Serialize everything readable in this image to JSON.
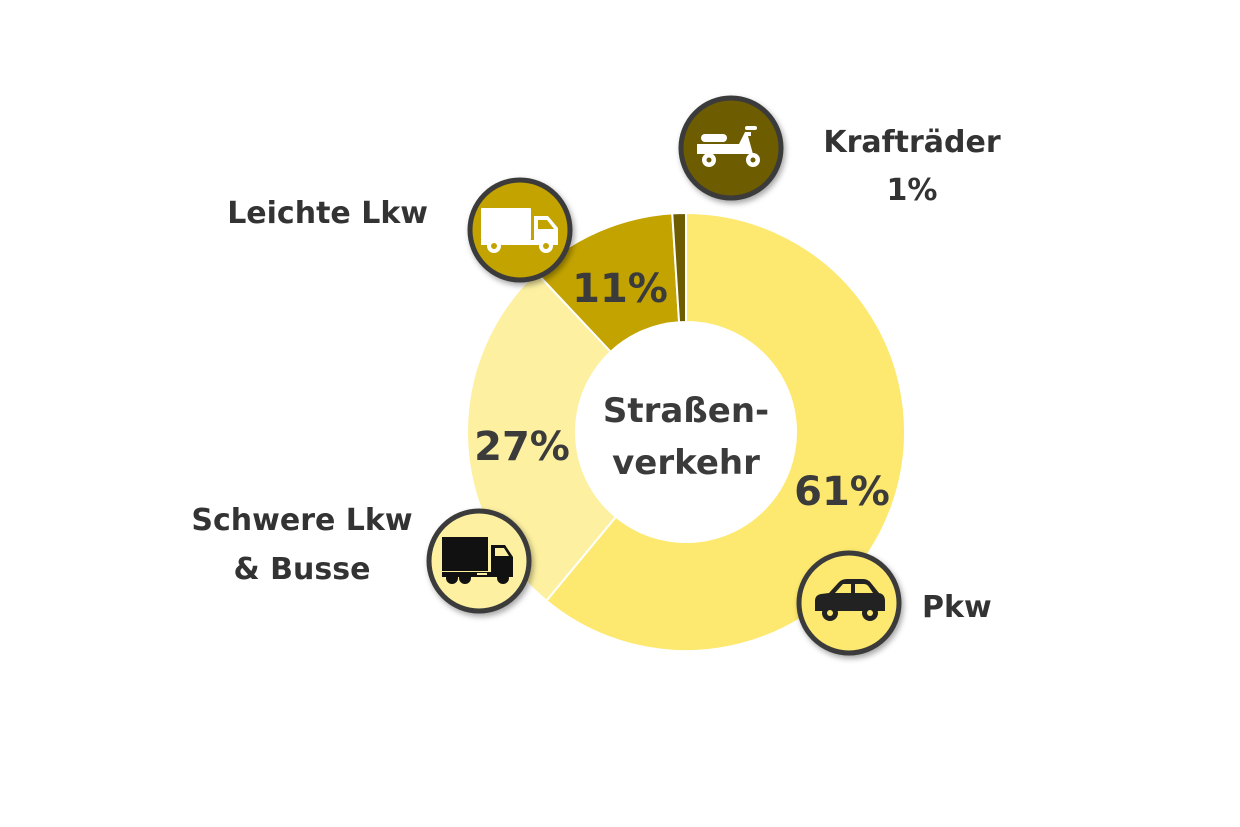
{
  "chart_data": {
    "type": "pie",
    "variant": "donut",
    "center_label": [
      "Straßen-",
      "verkehr"
    ],
    "slices": [
      {
        "label": "Pkw",
        "value": 61,
        "value_label": "61%",
        "color": "#fde96f",
        "icon": "car-icon"
      },
      {
        "label": "Schwere Lkw & Busse",
        "value": 27,
        "value_label": "27%",
        "color": "#fdf0a1",
        "icon": "heavy-truck-icon"
      },
      {
        "label": "Leichte Lkw",
        "value": 11,
        "value_label": "11%",
        "color": "#c2a300",
        "icon": "light-truck-icon"
      },
      {
        "label": "Krafträder",
        "value": 1,
        "value_label": "1%",
        "color": "#6e5d00",
        "icon": "scooter-icon"
      }
    ],
    "category_labels": {
      "pkw": [
        "Pkw"
      ],
      "schwere": [
        "Schwere Lkw",
        "& Busse"
      ],
      "leichte": [
        "Leichte Lkw"
      ],
      "kraft": [
        "Krafträder",
        "1%"
      ]
    }
  }
}
